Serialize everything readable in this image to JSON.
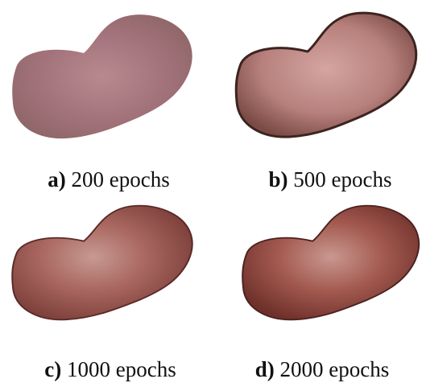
{
  "panels": [
    {
      "label": "a)",
      "caption": "200 epochs"
    },
    {
      "label": "b)",
      "caption": "500 epochs"
    },
    {
      "label": "c)",
      "caption": "1000 epochs"
    },
    {
      "label": "d)",
      "caption": "2000 epochs"
    }
  ]
}
